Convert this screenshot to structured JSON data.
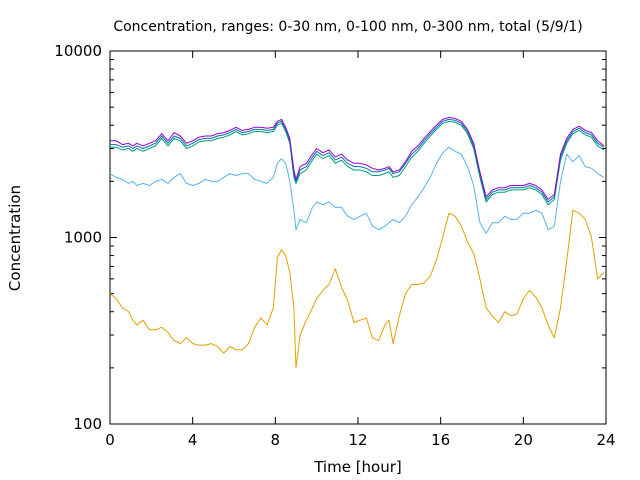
{
  "chart_data": {
    "type": "line",
    "title": "Concentration, ranges: 0-30 nm, 0-100 nm, 0-300 nm, total (5/9/1)",
    "xlabel": "Time [hour]",
    "ylabel": "Concentration",
    "xlim": [
      0,
      24
    ],
    "ylim": [
      100,
      10000
    ],
    "yscale": "log",
    "grid": false,
    "legend": "none",
    "x_ticks": [
      0,
      4,
      8,
      12,
      16,
      20,
      24
    ],
    "y_ticks": [
      100,
      1000,
      10000
    ],
    "x_tick_labels": [
      "0",
      "4",
      "8",
      "12",
      "16",
      "20",
      "24"
    ],
    "y_tick_labels": [
      "100",
      "1000",
      "10000"
    ],
    "series": [
      {
        "color": "#e69f00",
        "x": [
          0,
          0.3,
          0.6,
          0.9,
          1.1,
          1.3,
          1.6,
          1.9,
          2.2,
          2.5,
          2.8,
          3.1,
          3.4,
          3.7,
          4.0,
          4.3,
          4.6,
          4.9,
          5.2,
          5.5,
          5.8,
          6.1,
          6.4,
          6.7,
          7.0,
          7.3,
          7.6,
          7.9,
          8.1,
          8.3,
          8.5,
          8.7,
          8.9,
          9.0,
          9.2,
          9.5,
          9.8,
          10.0,
          10.3,
          10.6,
          10.9,
          11.2,
          11.5,
          11.8,
          12.1,
          12.4,
          12.7,
          13.0,
          13.3,
          13.5,
          13.7,
          14.0,
          14.3,
          14.6,
          14.9,
          15.2,
          15.5,
          15.8,
          16.1,
          16.4,
          16.7,
          17.0,
          17.3,
          17.6,
          17.9,
          18.2,
          18.5,
          18.8,
          19.1,
          19.4,
          19.7,
          20.0,
          20.3,
          20.6,
          20.9,
          21.2,
          21.5,
          21.8,
          22.1,
          22.4,
          22.7,
          23.0,
          23.3,
          23.6,
          23.9
        ],
        "y": [
          500,
          470,
          420,
          400,
          360,
          340,
          360,
          320,
          320,
          330,
          310,
          280,
          270,
          290,
          270,
          265,
          265,
          270,
          260,
          240,
          260,
          250,
          250,
          270,
          330,
          370,
          340,
          420,
          780,
          860,
          800,
          650,
          420,
          200,
          300,
          360,
          420,
          470,
          520,
          560,
          680,
          540,
          460,
          350,
          360,
          370,
          290,
          280,
          340,
          360,
          270,
          380,
          500,
          560,
          560,
          570,
          620,
          760,
          1000,
          1350,
          1300,
          1150,
          950,
          820,
          600,
          420,
          380,
          350,
          400,
          380,
          390,
          470,
          520,
          480,
          420,
          340,
          290,
          420,
          750,
          1400,
          1350,
          1250,
          1000,
          600,
          650
        ]
      },
      {
        "color": "#56b4e9",
        "x": [
          0,
          0.3,
          0.6,
          0.9,
          1.1,
          1.3,
          1.6,
          1.9,
          2.2,
          2.5,
          2.8,
          3.1,
          3.4,
          3.7,
          4.0,
          4.3,
          4.6,
          4.9,
          5.2,
          5.5,
          5.8,
          6.1,
          6.4,
          6.7,
          7.0,
          7.3,
          7.6,
          7.9,
          8.1,
          8.3,
          8.5,
          8.7,
          8.9,
          9.0,
          9.2,
          9.5,
          9.8,
          10.0,
          10.3,
          10.6,
          10.9,
          11.2,
          11.5,
          11.8,
          12.1,
          12.4,
          12.7,
          13.0,
          13.3,
          13.5,
          13.7,
          14.0,
          14.3,
          14.6,
          14.9,
          15.2,
          15.5,
          15.8,
          16.1,
          16.4,
          16.7,
          17.0,
          17.3,
          17.6,
          17.9,
          18.2,
          18.5,
          18.8,
          19.1,
          19.4,
          19.7,
          20.0,
          20.3,
          20.6,
          20.9,
          21.2,
          21.5,
          21.8,
          22.1,
          22.4,
          22.7,
          23.0,
          23.3,
          23.6,
          23.9
        ],
        "y": [
          2200,
          2100,
          2050,
          1950,
          2000,
          1900,
          1950,
          1900,
          2000,
          2050,
          1950,
          2100,
          2200,
          1950,
          1900,
          1950,
          2050,
          2000,
          2000,
          2100,
          2200,
          2150,
          2200,
          2200,
          2050,
          2000,
          1950,
          2100,
          2500,
          2650,
          2500,
          2000,
          1400,
          1100,
          1250,
          1200,
          1450,
          1550,
          1500,
          1550,
          1450,
          1450,
          1300,
          1250,
          1300,
          1350,
          1150,
          1100,
          1150,
          1200,
          1250,
          1200,
          1300,
          1500,
          1650,
          1850,
          2100,
          2500,
          2850,
          3050,
          2900,
          2800,
          2400,
          1900,
          1200,
          1050,
          1200,
          1200,
          1300,
          1250,
          1250,
          1350,
          1350,
          1400,
          1350,
          1100,
          1150,
          2000,
          2800,
          2550,
          2750,
          2400,
          2350,
          2200,
          2100
        ]
      },
      {
        "color": "#009e73",
        "x": [
          0,
          0.3,
          0.6,
          0.9,
          1.1,
          1.3,
          1.6,
          1.9,
          2.2,
          2.5,
          2.8,
          3.1,
          3.4,
          3.7,
          4.0,
          4.3,
          4.6,
          4.9,
          5.2,
          5.5,
          5.8,
          6.1,
          6.4,
          6.7,
          7.0,
          7.3,
          7.6,
          7.9,
          8.1,
          8.3,
          8.5,
          8.7,
          8.9,
          9.0,
          9.2,
          9.5,
          9.8,
          10.0,
          10.3,
          10.6,
          10.9,
          11.2,
          11.5,
          11.8,
          12.1,
          12.4,
          12.7,
          13.0,
          13.3,
          13.5,
          13.7,
          14.0,
          14.3,
          14.6,
          14.9,
          15.2,
          15.5,
          15.8,
          16.1,
          16.4,
          16.7,
          17.0,
          17.3,
          17.6,
          17.9,
          18.2,
          18.5,
          18.8,
          19.1,
          19.4,
          19.7,
          20.0,
          20.3,
          20.6,
          20.9,
          21.2,
          21.5,
          21.8,
          22.1,
          22.4,
          22.7,
          23.0,
          23.3,
          23.6,
          23.9
        ],
        "y": [
          3050,
          3050,
          2950,
          3000,
          2900,
          3000,
          2900,
          3000,
          3100,
          3400,
          3100,
          3400,
          3300,
          3000,
          3100,
          3250,
          3300,
          3300,
          3400,
          3450,
          3550,
          3700,
          3550,
          3600,
          3700,
          3700,
          3650,
          3700,
          4000,
          4100,
          3700,
          3200,
          2100,
          1950,
          2200,
          2300,
          2600,
          2800,
          2650,
          2750,
          2500,
          2600,
          2400,
          2300,
          2300,
          2250,
          2150,
          2150,
          2200,
          2250,
          2100,
          2150,
          2400,
          2700,
          2900,
          3200,
          3500,
          3800,
          4100,
          4200,
          4150,
          4000,
          3600,
          3000,
          2100,
          1550,
          1700,
          1750,
          1750,
          1800,
          1800,
          1800,
          1850,
          1800,
          1700,
          1500,
          1600,
          2600,
          3200,
          3600,
          3750,
          3550,
          3450,
          3100,
          2950
        ]
      },
      {
        "color": "#0072b2",
        "x": [
          0,
          0.3,
          0.6,
          0.9,
          1.1,
          1.3,
          1.6,
          1.9,
          2.2,
          2.5,
          2.8,
          3.1,
          3.4,
          3.7,
          4.0,
          4.3,
          4.6,
          4.9,
          5.2,
          5.5,
          5.8,
          6.1,
          6.4,
          6.7,
          7.0,
          7.3,
          7.6,
          7.9,
          8.1,
          8.3,
          8.5,
          8.7,
          8.9,
          9.0,
          9.2,
          9.5,
          9.8,
          10.0,
          10.3,
          10.6,
          10.9,
          11.2,
          11.5,
          11.8,
          12.1,
          12.4,
          12.7,
          13.0,
          13.3,
          13.5,
          13.7,
          14.0,
          14.3,
          14.6,
          14.9,
          15.2,
          15.5,
          15.8,
          16.1,
          16.4,
          16.7,
          17.0,
          17.3,
          17.6,
          17.9,
          18.2,
          18.5,
          18.8,
          19.1,
          19.4,
          19.7,
          20.0,
          20.3,
          20.6,
          20.9,
          21.2,
          21.5,
          21.8,
          22.1,
          22.4,
          22.7,
          23.0,
          23.3,
          23.6,
          23.9
        ],
        "y": [
          3150,
          3150,
          3050,
          3100,
          3000,
          3100,
          3000,
          3100,
          3200,
          3500,
          3200,
          3500,
          3400,
          3100,
          3200,
          3350,
          3400,
          3400,
          3500,
          3550,
          3650,
          3800,
          3650,
          3700,
          3800,
          3800,
          3750,
          3800,
          4100,
          4200,
          3800,
          3300,
          2200,
          2000,
          2300,
          2400,
          2700,
          2900,
          2750,
          2850,
          2600,
          2700,
          2500,
          2400,
          2400,
          2350,
          2250,
          2250,
          2300,
          2350,
          2200,
          2250,
          2500,
          2800,
          3000,
          3300,
          3600,
          3900,
          4200,
          4300,
          4250,
          4100,
          3700,
          3100,
          2200,
          1600,
          1750,
          1800,
          1800,
          1850,
          1850,
          1850,
          1900,
          1850,
          1750,
          1550,
          1650,
          2700,
          3300,
          3700,
          3850,
          3650,
          3550,
          3200,
          3050
        ]
      },
      {
        "color": "#9400d3",
        "x": [
          0,
          0.3,
          0.6,
          0.9,
          1.1,
          1.3,
          1.6,
          1.9,
          2.2,
          2.5,
          2.8,
          3.1,
          3.4,
          3.7,
          4.0,
          4.3,
          4.6,
          4.9,
          5.2,
          5.5,
          5.8,
          6.1,
          6.4,
          6.7,
          7.0,
          7.3,
          7.6,
          7.9,
          8.1,
          8.3,
          8.5,
          8.7,
          8.9,
          9.0,
          9.2,
          9.5,
          9.8,
          10.0,
          10.3,
          10.6,
          10.9,
          11.2,
          11.5,
          11.8,
          12.1,
          12.4,
          12.7,
          13.0,
          13.3,
          13.5,
          13.7,
          14.0,
          14.3,
          14.6,
          14.9,
          15.2,
          15.5,
          15.8,
          16.1,
          16.4,
          16.7,
          17.0,
          17.3,
          17.6,
          17.9,
          18.2,
          18.5,
          18.8,
          19.1,
          19.4,
          19.7,
          20.0,
          20.3,
          20.6,
          20.9,
          21.2,
          21.5,
          21.8,
          22.1,
          22.4,
          22.7,
          23.0,
          23.3,
          23.6,
          23.9
        ],
        "y": [
          3300,
          3300,
          3150,
          3200,
          3100,
          3200,
          3100,
          3200,
          3300,
          3600,
          3300,
          3650,
          3500,
          3200,
          3300,
          3450,
          3500,
          3500,
          3600,
          3650,
          3750,
          3900,
          3750,
          3800,
          3900,
          3900,
          3850,
          3900,
          4200,
          4300,
          3900,
          3400,
          2300,
          2050,
          2400,
          2500,
          2800,
          3000,
          2850,
          2950,
          2700,
          2800,
          2600,
          2500,
          2500,
          2450,
          2350,
          2300,
          2350,
          2400,
          2250,
          2300,
          2550,
          2900,
          3100,
          3400,
          3700,
          4000,
          4300,
          4400,
          4350,
          4200,
          3800,
          3200,
          2250,
          1650,
          1800,
          1850,
          1850,
          1900,
          1900,
          1900,
          1950,
          1900,
          1800,
          1600,
          1700,
          2800,
          3400,
          3800,
          3950,
          3750,
          3650,
          3300,
          3100
        ]
      }
    ]
  }
}
